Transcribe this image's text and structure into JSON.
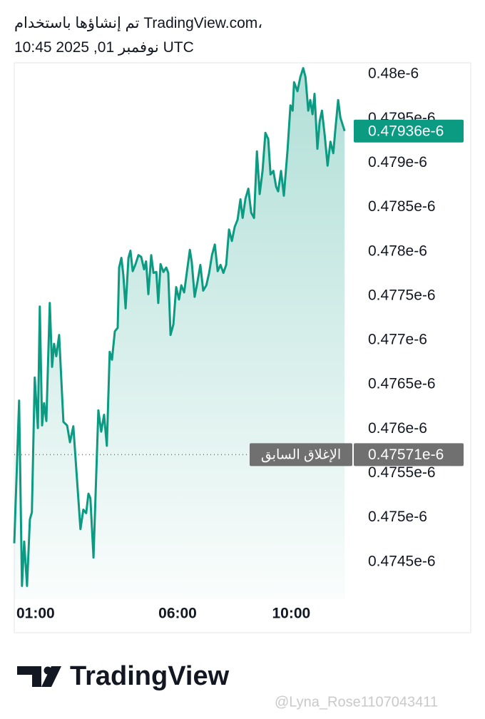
{
  "chart_data": {
    "type": "line",
    "title": "تم إنشاؤها باستخدام TradingView.com،",
    "subtitle": "10:45 2025 ,01 نوفمبر UTC",
    "x": [
      0.25,
      0.42,
      0.52,
      0.6,
      0.7,
      0.8,
      0.87,
      0.97,
      1.08,
      1.15,
      1.23,
      1.3,
      1.38,
      1.5,
      1.58,
      1.65,
      1.73,
      1.83,
      1.98,
      2.11,
      2.21,
      2.33,
      2.58,
      2.68,
      2.78,
      2.86,
      2.93,
      3.04,
      3.21,
      3.31,
      3.41,
      3.51,
      3.61,
      3.69,
      3.79,
      3.89,
      3.94,
      4.02,
      4.09,
      4.17,
      4.27,
      4.34,
      4.42,
      4.52,
      4.62,
      4.72,
      4.82,
      4.89,
      4.97,
      5.07,
      5.15,
      5.25,
      5.32,
      5.4,
      5.5,
      5.6,
      5.67,
      5.75,
      5.85,
      5.95,
      6.05,
      6.13,
      6.23,
      6.33,
      6.43,
      6.5,
      6.6,
      6.7,
      6.8,
      6.9,
      7.01,
      7.11,
      7.21,
      7.31,
      7.41,
      7.51,
      7.61,
      7.71,
      7.81,
      7.91,
      8.01,
      8.11,
      8.21,
      8.29,
      8.39,
      8.49,
      8.59,
      8.69,
      8.79,
      8.89,
      8.99,
      9.09,
      9.19,
      9.27,
      9.37,
      9.47,
      9.54,
      9.64,
      9.74,
      9.87,
      9.97,
      10.05,
      10.1,
      10.22,
      10.32,
      10.42,
      10.5,
      10.6,
      10.67,
      10.75,
      10.82,
      10.92,
      11.0,
      11.08,
      11.18,
      11.28,
      11.38,
      11.48,
      11.55,
      11.65,
      11.73,
      11.88
    ],
    "series": [
      {
        "color": "#0b9a82",
        "values": [
          4.7471e-07,
          4.7632e-07,
          4.7423e-07,
          4.7473e-07,
          4.7423e-07,
          4.7498e-07,
          4.7506e-07,
          4.7658e-07,
          4.7601e-07,
          4.7738e-07,
          4.7604e-07,
          4.7629e-07,
          4.7609e-07,
          4.7742e-07,
          4.767e-07,
          4.7696e-07,
          4.7682e-07,
          4.7706e-07,
          4.7608e-07,
          4.7604e-07,
          4.7585e-07,
          4.7603e-07,
          4.7487e-07,
          4.7509e-07,
          4.7505e-07,
          4.7527e-07,
          4.7522e-07,
          4.7455e-07,
          4.7621e-07,
          4.7597e-07,
          4.7616e-07,
          4.7581e-07,
          4.7687e-07,
          4.7678e-07,
          4.771e-07,
          4.7714e-07,
          4.7782e-07,
          4.7793e-07,
          4.7774e-07,
          4.7736e-07,
          4.7793e-07,
          4.7801e-07,
          4.7778e-07,
          4.7786e-07,
          4.7796e-07,
          4.7794e-07,
          4.778e-07,
          4.7789e-07,
          4.7752e-07,
          4.7796e-07,
          4.7776e-07,
          4.7777e-07,
          4.7742e-07,
          4.7786e-07,
          4.7777e-07,
          4.7782e-07,
          4.7776e-07,
          4.7706e-07,
          4.7718e-07,
          4.776e-07,
          4.7746e-07,
          4.7762e-07,
          4.7754e-07,
          4.7778e-07,
          4.7802e-07,
          4.7788e-07,
          4.7749e-07,
          4.7766e-07,
          4.7785e-07,
          4.7756e-07,
          4.7762e-07,
          4.7776e-07,
          4.7796e-07,
          4.7808e-07,
          4.7778e-07,
          4.7785e-07,
          4.7776e-07,
          4.7785e-07,
          4.7825e-07,
          4.7812e-07,
          4.7828e-07,
          4.7836e-07,
          4.7859e-07,
          4.7838e-07,
          4.786e-07,
          4.7871e-07,
          4.7844e-07,
          4.7838e-07,
          4.7913e-07,
          4.7865e-07,
          4.7891e-07,
          4.7934e-07,
          4.7927e-07,
          4.7887e-07,
          4.7891e-07,
          4.7873e-07,
          4.7868e-07,
          4.7891e-07,
          4.7863e-07,
          4.7915e-07,
          4.7965e-07,
          4.7959e-07,
          4.7991e-07,
          4.7981e-07,
          4.7997e-07,
          4.8007e-07,
          4.7997e-07,
          4.7959e-07,
          4.7971e-07,
          4.7955e-07,
          4.7978e-07,
          4.7916e-07,
          4.7947e-07,
          4.7959e-07,
          4.7931e-07,
          4.7897e-07,
          4.7924e-07,
          4.7911e-07,
          4.7937e-07,
          4.7971e-07,
          4.7951e-07,
          4.7936e-07
        ],
        "last_label": "0.47936e-6"
      }
    ],
    "xlim": [
      0.25,
      12.05
    ],
    "xticks": [
      {
        "value": 1,
        "label": "01:00"
      },
      {
        "value": 6,
        "label": "06:00"
      },
      {
        "value": 10,
        "label": "10:00"
      }
    ],
    "ylim": [
      4.7408e-07,
      4.8013e-07
    ],
    "yticks": [
      {
        "value": 4.8e-07,
        "label": "0.48e-6"
      },
      {
        "value": 4.795e-07,
        "label": "0.4795e-6"
      },
      {
        "value": 4.79e-07,
        "label": "0.479e-6"
      },
      {
        "value": 4.785e-07,
        "label": "0.4785e-6"
      },
      {
        "value": 4.78e-07,
        "label": "0.478e-6"
      },
      {
        "value": 4.775e-07,
        "label": "0.4775e-6"
      },
      {
        "value": 4.77e-07,
        "label": "0.477e-6"
      },
      {
        "value": 4.765e-07,
        "label": "0.4765e-6"
      },
      {
        "value": 4.76e-07,
        "label": "0.476e-6"
      },
      {
        "value": 4.755e-07,
        "label": "0.4755e-6"
      },
      {
        "value": 4.75e-07,
        "label": "0.475e-6"
      },
      {
        "value": 4.745e-07,
        "label": "0.4745e-6"
      }
    ],
    "grid": false,
    "previous_close": {
      "name": "الإغلاق السابق",
      "value": 4.7571e-07,
      "label": "0.47571e-6",
      "color": "#707070"
    }
  },
  "footer": {
    "brand": "TradingView",
    "watermark": "@Lyna_Rose1107043411"
  }
}
